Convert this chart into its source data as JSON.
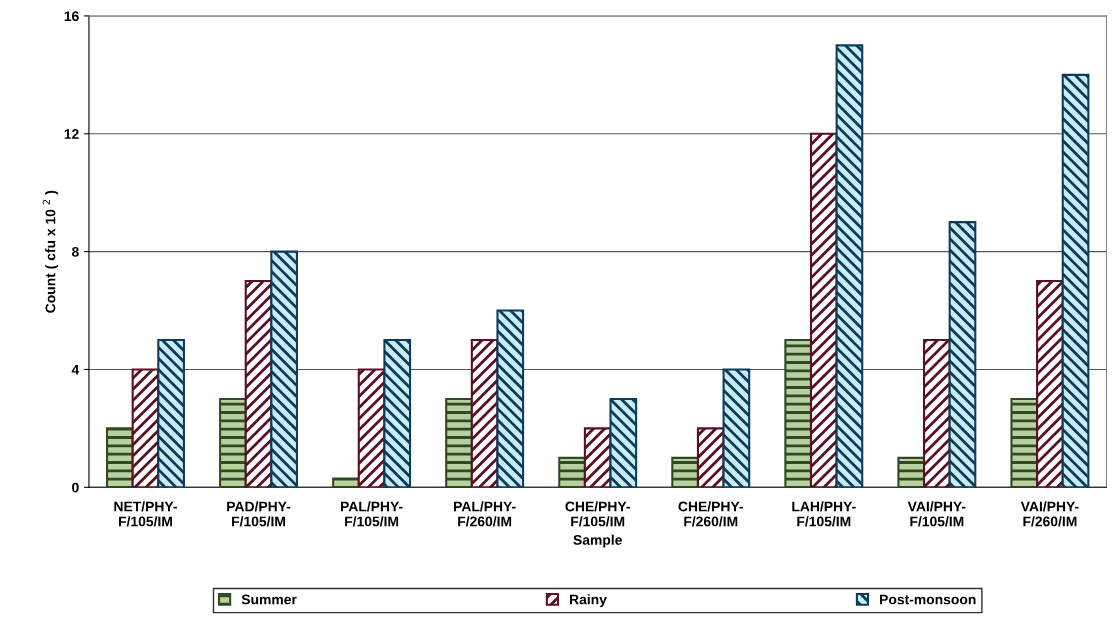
{
  "chart_data": {
    "type": "bar",
    "xlabel": "Sample",
    "ylabel": "Count ( cfu x 10 $^{2}$ )",
    "categories": [
      "NET/PHY-\nF/105/IM",
      "PAD/PHY-\nF/105/IM",
      "PAL/PHY-\nF/105/IM",
      "PAL/PHY-\nF/260/IM",
      "CHE/PHY-\nF/105/IM",
      "CHE/PHY-\nF/260/IM",
      "LAH/PHY-\nF/105/IM",
      "VAI/PHY-\nF/105/IM",
      "VAI/PHY-\nF/260/IM"
    ],
    "series": [
      {
        "name": "Summer",
        "color": "#2f4a25",
        "values": [
          2,
          3,
          0.3,
          3,
          1,
          1,
          5,
          1,
          3
        ]
      },
      {
        "name": "Rainy",
        "color": "#5a0f22",
        "values": [
          4,
          7,
          4,
          5,
          2,
          2,
          12,
          5,
          7
        ]
      },
      {
        "name": "Post-monsoon",
        "color": "#0f3a5a",
        "values": [
          5,
          8,
          5,
          6,
          3,
          4,
          15,
          9,
          14
        ]
      }
    ],
    "ylim": [
      0,
      16
    ],
    "yticks": [
      0,
      4,
      8,
      12,
      16
    ],
    "grid": "y",
    "legend": "bottom"
  }
}
